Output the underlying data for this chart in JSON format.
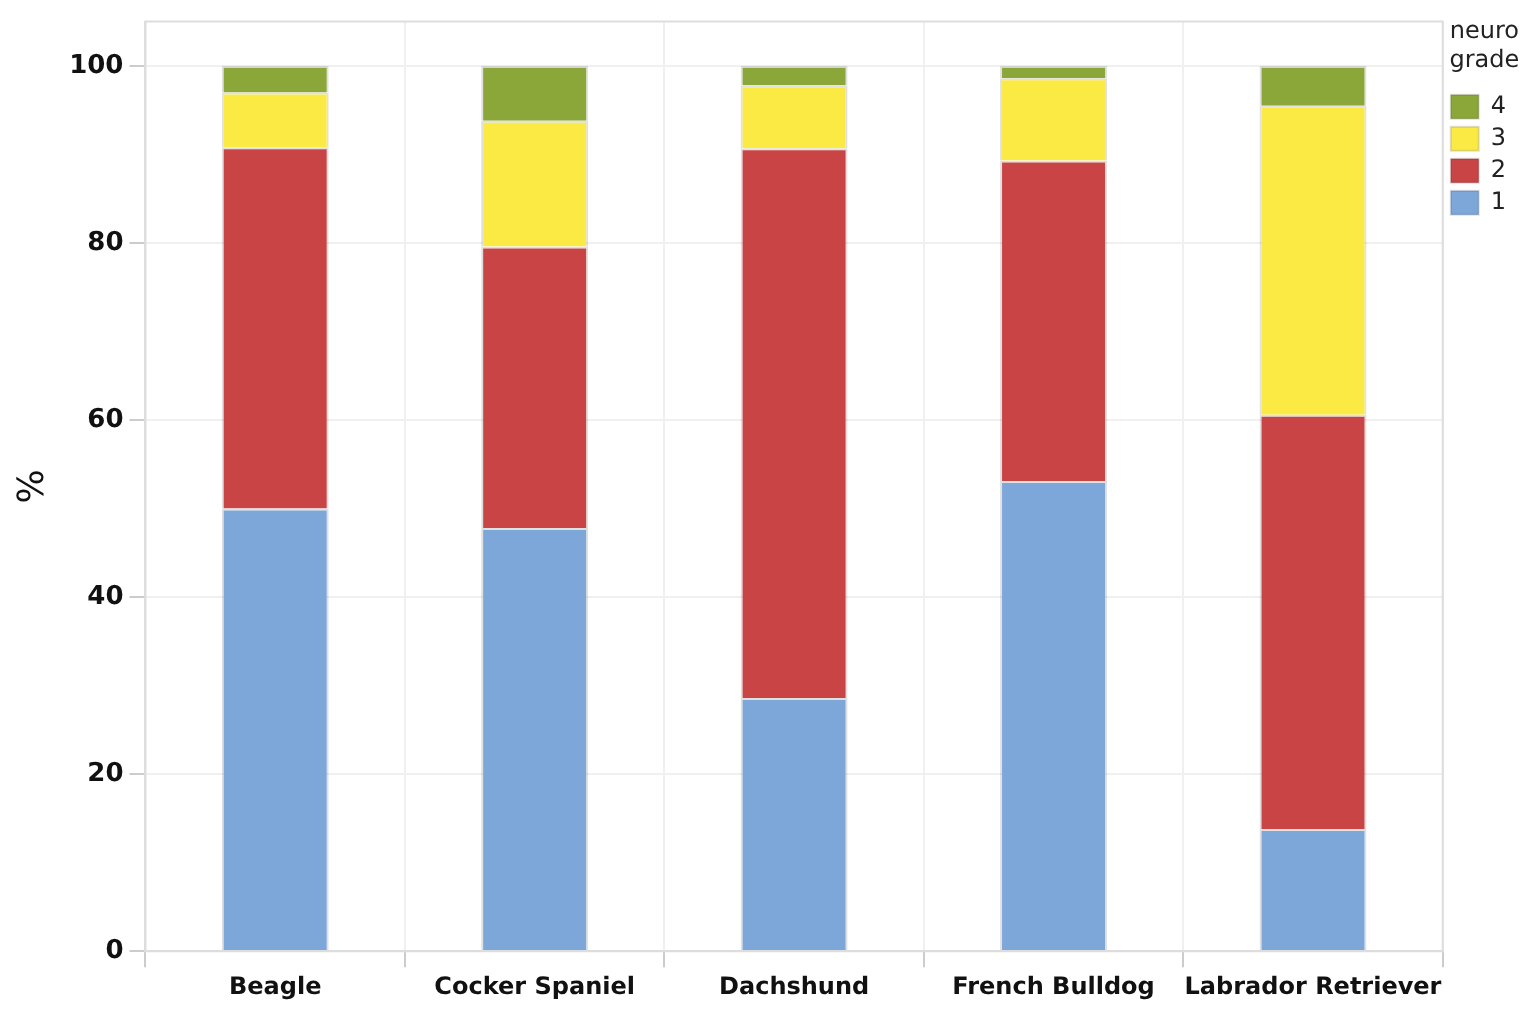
{
  "chart_data": {
    "type": "bar",
    "stacked": true,
    "ylabel": "%",
    "legend_title": "neuro grade",
    "legend": "top right",
    "grid": true,
    "categories": [
      "Beagle",
      "Cocker Spaniel",
      "Dachshund",
      "French Bulldog",
      "Labrador Retriever"
    ],
    "ylim": [
      0,
      105
    ],
    "yticks": [
      0,
      20,
      40,
      60,
      80,
      100
    ],
    "series": [
      {
        "name": "1",
        "color": "#7da6d9",
        "values": [
          50,
          47.8,
          28.6,
          53.1,
          13.8
        ]
      },
      {
        "name": "2",
        "color": "#c94545",
        "values": [
          40.8,
          31.8,
          62.1,
          36.2,
          46.8
        ]
      },
      {
        "name": "3",
        "color": "#fcea44",
        "values": [
          6.2,
          14.2,
          7.1,
          9.3,
          34.9
        ]
      },
      {
        "name": "4",
        "color": "#8ba639",
        "values": [
          3,
          6.2,
          2.2,
          1.4,
          4.5
        ]
      }
    ]
  }
}
